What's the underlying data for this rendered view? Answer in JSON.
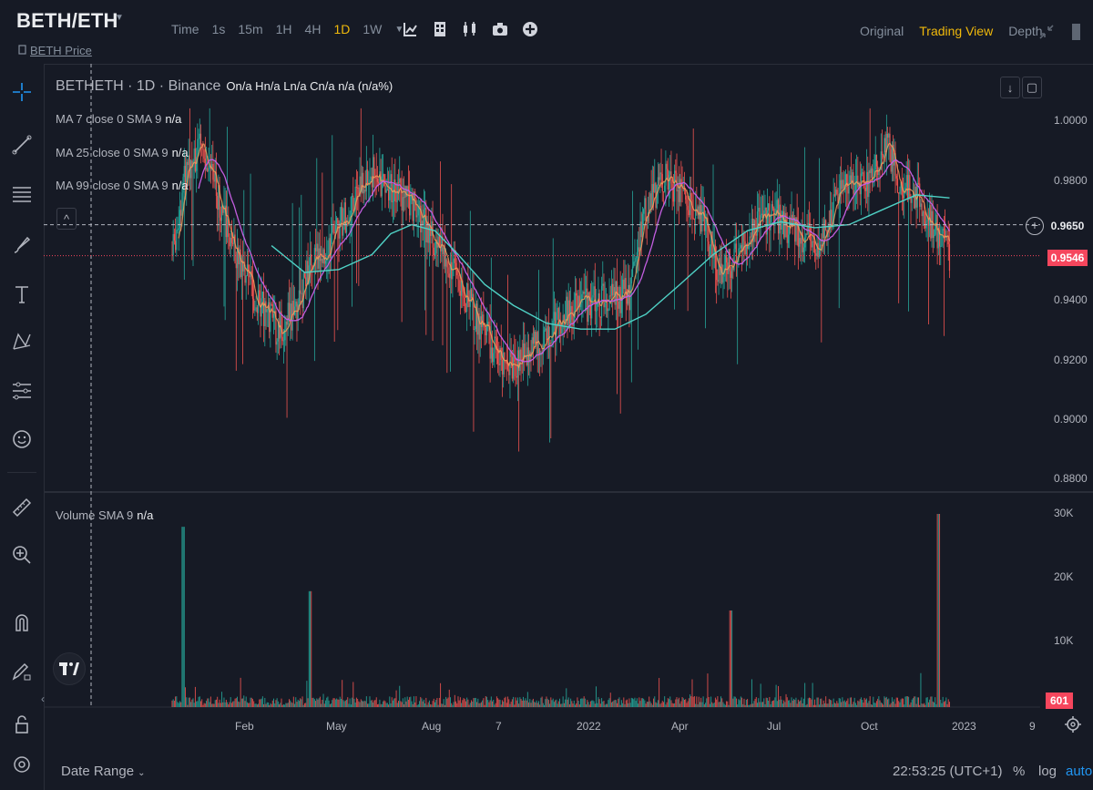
{
  "header": {
    "pair": "BETH/ETH",
    "subtitle_prefix": "",
    "subtitle_link": "BETH Price",
    "intervals": [
      "Time",
      "1s",
      "15m",
      "1H",
      "4H",
      "1D",
      "1W"
    ],
    "active_interval": "1D",
    "views": [
      "Original",
      "Trading View",
      "Depth"
    ],
    "active_view": "Trading View"
  },
  "legend": {
    "symbol": "BETHETH · 1D · Binance",
    "ohlc": "On/a Hn/a Ln/a Cn/a n/a (n/a%)",
    "ma7": "MA 7 close 0 SMA 9",
    "ma25": "MA 25 close 0 SMA 9",
    "ma99": "MA 99 close 0 SMA 9",
    "na": "n/a",
    "volume": "Volume SMA 9"
  },
  "price_axis": {
    "ticks": [
      "1.0000",
      "0.9800",
      "0.9400",
      "0.9200",
      "0.9000",
      "0.8800"
    ],
    "crosshair_price": "0.9650",
    "last_price": "0.9546"
  },
  "volume_axis": {
    "ticks": [
      "30K",
      "20K",
      "10K"
    ],
    "last_volume": "601"
  },
  "time_axis": {
    "ticks": [
      "Feb",
      "May",
      "Aug",
      "7",
      "2022",
      "Apr",
      "Jul",
      "Oct",
      "2023",
      "9"
    ]
  },
  "footer": {
    "date_range": "Date Range",
    "time": "22:53:25 (UTC+1)",
    "percent": "%",
    "log": "log",
    "auto": "auto"
  },
  "colors": {
    "up": "#26a69a",
    "down": "#ef5350",
    "ma7": "#f7a35c",
    "ma25": "#c35ee0",
    "ma99": "#4fd1c5",
    "accent": "#f0b90b",
    "link": "#1e88e5"
  },
  "chart_data": {
    "type": "candlestick",
    "x_range": [
      "2021-01",
      "2023-01"
    ],
    "ylim": [
      0.88,
      1.0
    ],
    "close_series": [
      {
        "date": "2021-01-15",
        "close": 0.955
      },
      {
        "date": "2021-01-28",
        "close": 0.985
      },
      {
        "date": "2021-02-10",
        "close": 0.99
      },
      {
        "date": "2021-02-25",
        "close": 0.975
      },
      {
        "date": "2021-03-15",
        "close": 0.955
      },
      {
        "date": "2021-04-01",
        "close": 0.94
      },
      {
        "date": "2021-04-20",
        "close": 0.93
      },
      {
        "date": "2021-05-05",
        "close": 0.935
      },
      {
        "date": "2021-05-20",
        "close": 0.95
      },
      {
        "date": "2021-06-10",
        "close": 0.96
      },
      {
        "date": "2021-06-30",
        "close": 0.975
      },
      {
        "date": "2021-07-15",
        "close": 0.982
      },
      {
        "date": "2021-08-01",
        "close": 0.978
      },
      {
        "date": "2021-08-20",
        "close": 0.972
      },
      {
        "date": "2021-09-10",
        "close": 0.96
      },
      {
        "date": "2021-10-01",
        "close": 0.945
      },
      {
        "date": "2021-10-20",
        "close": 0.932
      },
      {
        "date": "2021-11-10",
        "close": 0.918
      },
      {
        "date": "2021-11-25",
        "close": 0.918
      },
      {
        "date": "2021-12-10",
        "close": 0.925
      },
      {
        "date": "2022-01-05",
        "close": 0.935
      },
      {
        "date": "2022-01-25",
        "close": 0.938
      },
      {
        "date": "2022-02-15",
        "close": 0.94
      },
      {
        "date": "2022-03-05",
        "close": 0.942
      },
      {
        "date": "2022-03-20",
        "close": 0.97
      },
      {
        "date": "2022-04-05",
        "close": 0.98
      },
      {
        "date": "2022-04-25",
        "close": 0.975
      },
      {
        "date": "2022-05-10",
        "close": 0.968
      },
      {
        "date": "2022-05-25",
        "close": 0.948
      },
      {
        "date": "2022-06-10",
        "close": 0.955
      },
      {
        "date": "2022-06-25",
        "close": 0.965
      },
      {
        "date": "2022-07-15",
        "close": 0.968
      },
      {
        "date": "2022-08-05",
        "close": 0.962
      },
      {
        "date": "2022-08-25",
        "close": 0.958
      },
      {
        "date": "2022-09-10",
        "close": 0.975
      },
      {
        "date": "2022-09-25",
        "close": 0.98
      },
      {
        "date": "2022-10-10",
        "close": 0.98
      },
      {
        "date": "2022-10-25",
        "close": 0.992
      },
      {
        "date": "2022-11-05",
        "close": 0.978
      },
      {
        "date": "2022-11-20",
        "close": 0.975
      },
      {
        "date": "2022-12-05",
        "close": 0.965
      },
      {
        "date": "2022-12-20",
        "close": 0.955
      }
    ],
    "ma99": [
      {
        "date": "2021-04-15",
        "value": 0.958
      },
      {
        "date": "2021-05-15",
        "value": 0.949
      },
      {
        "date": "2021-06-15",
        "value": 0.95
      },
      {
        "date": "2021-07-15",
        "value": 0.955
      },
      {
        "date": "2021-08-01",
        "value": 0.962
      },
      {
        "date": "2021-08-20",
        "value": 0.965
      },
      {
        "date": "2021-09-10",
        "value": 0.963
      },
      {
        "date": "2021-10-01",
        "value": 0.955
      },
      {
        "date": "2021-10-25",
        "value": 0.945
      },
      {
        "date": "2021-11-20",
        "value": 0.938
      },
      {
        "date": "2021-12-20",
        "value": 0.932
      },
      {
        "date": "2022-01-20",
        "value": 0.93
      },
      {
        "date": "2022-02-20",
        "value": 0.93
      },
      {
        "date": "2022-03-20",
        "value": 0.935
      },
      {
        "date": "2022-04-20",
        "value": 0.945
      },
      {
        "date": "2022-05-20",
        "value": 0.955
      },
      {
        "date": "2022-06-20",
        "value": 0.963
      },
      {
        "date": "2022-07-20",
        "value": 0.966
      },
      {
        "date": "2022-08-20",
        "value": 0.964
      },
      {
        "date": "2022-09-20",
        "value": 0.965
      },
      {
        "date": "2022-10-20",
        "value": 0.97
      },
      {
        "date": "2022-11-20",
        "value": 0.975
      },
      {
        "date": "2022-12-20",
        "value": 0.974
      }
    ],
    "volume_peaks": [
      {
        "date": "2021-01-25",
        "volume": 28000
      },
      {
        "date": "2021-05-20",
        "volume": 18000
      },
      {
        "date": "2022-06-05",
        "volume": 15000
      },
      {
        "date": "2022-12-10",
        "volume": 30000
      }
    ]
  }
}
